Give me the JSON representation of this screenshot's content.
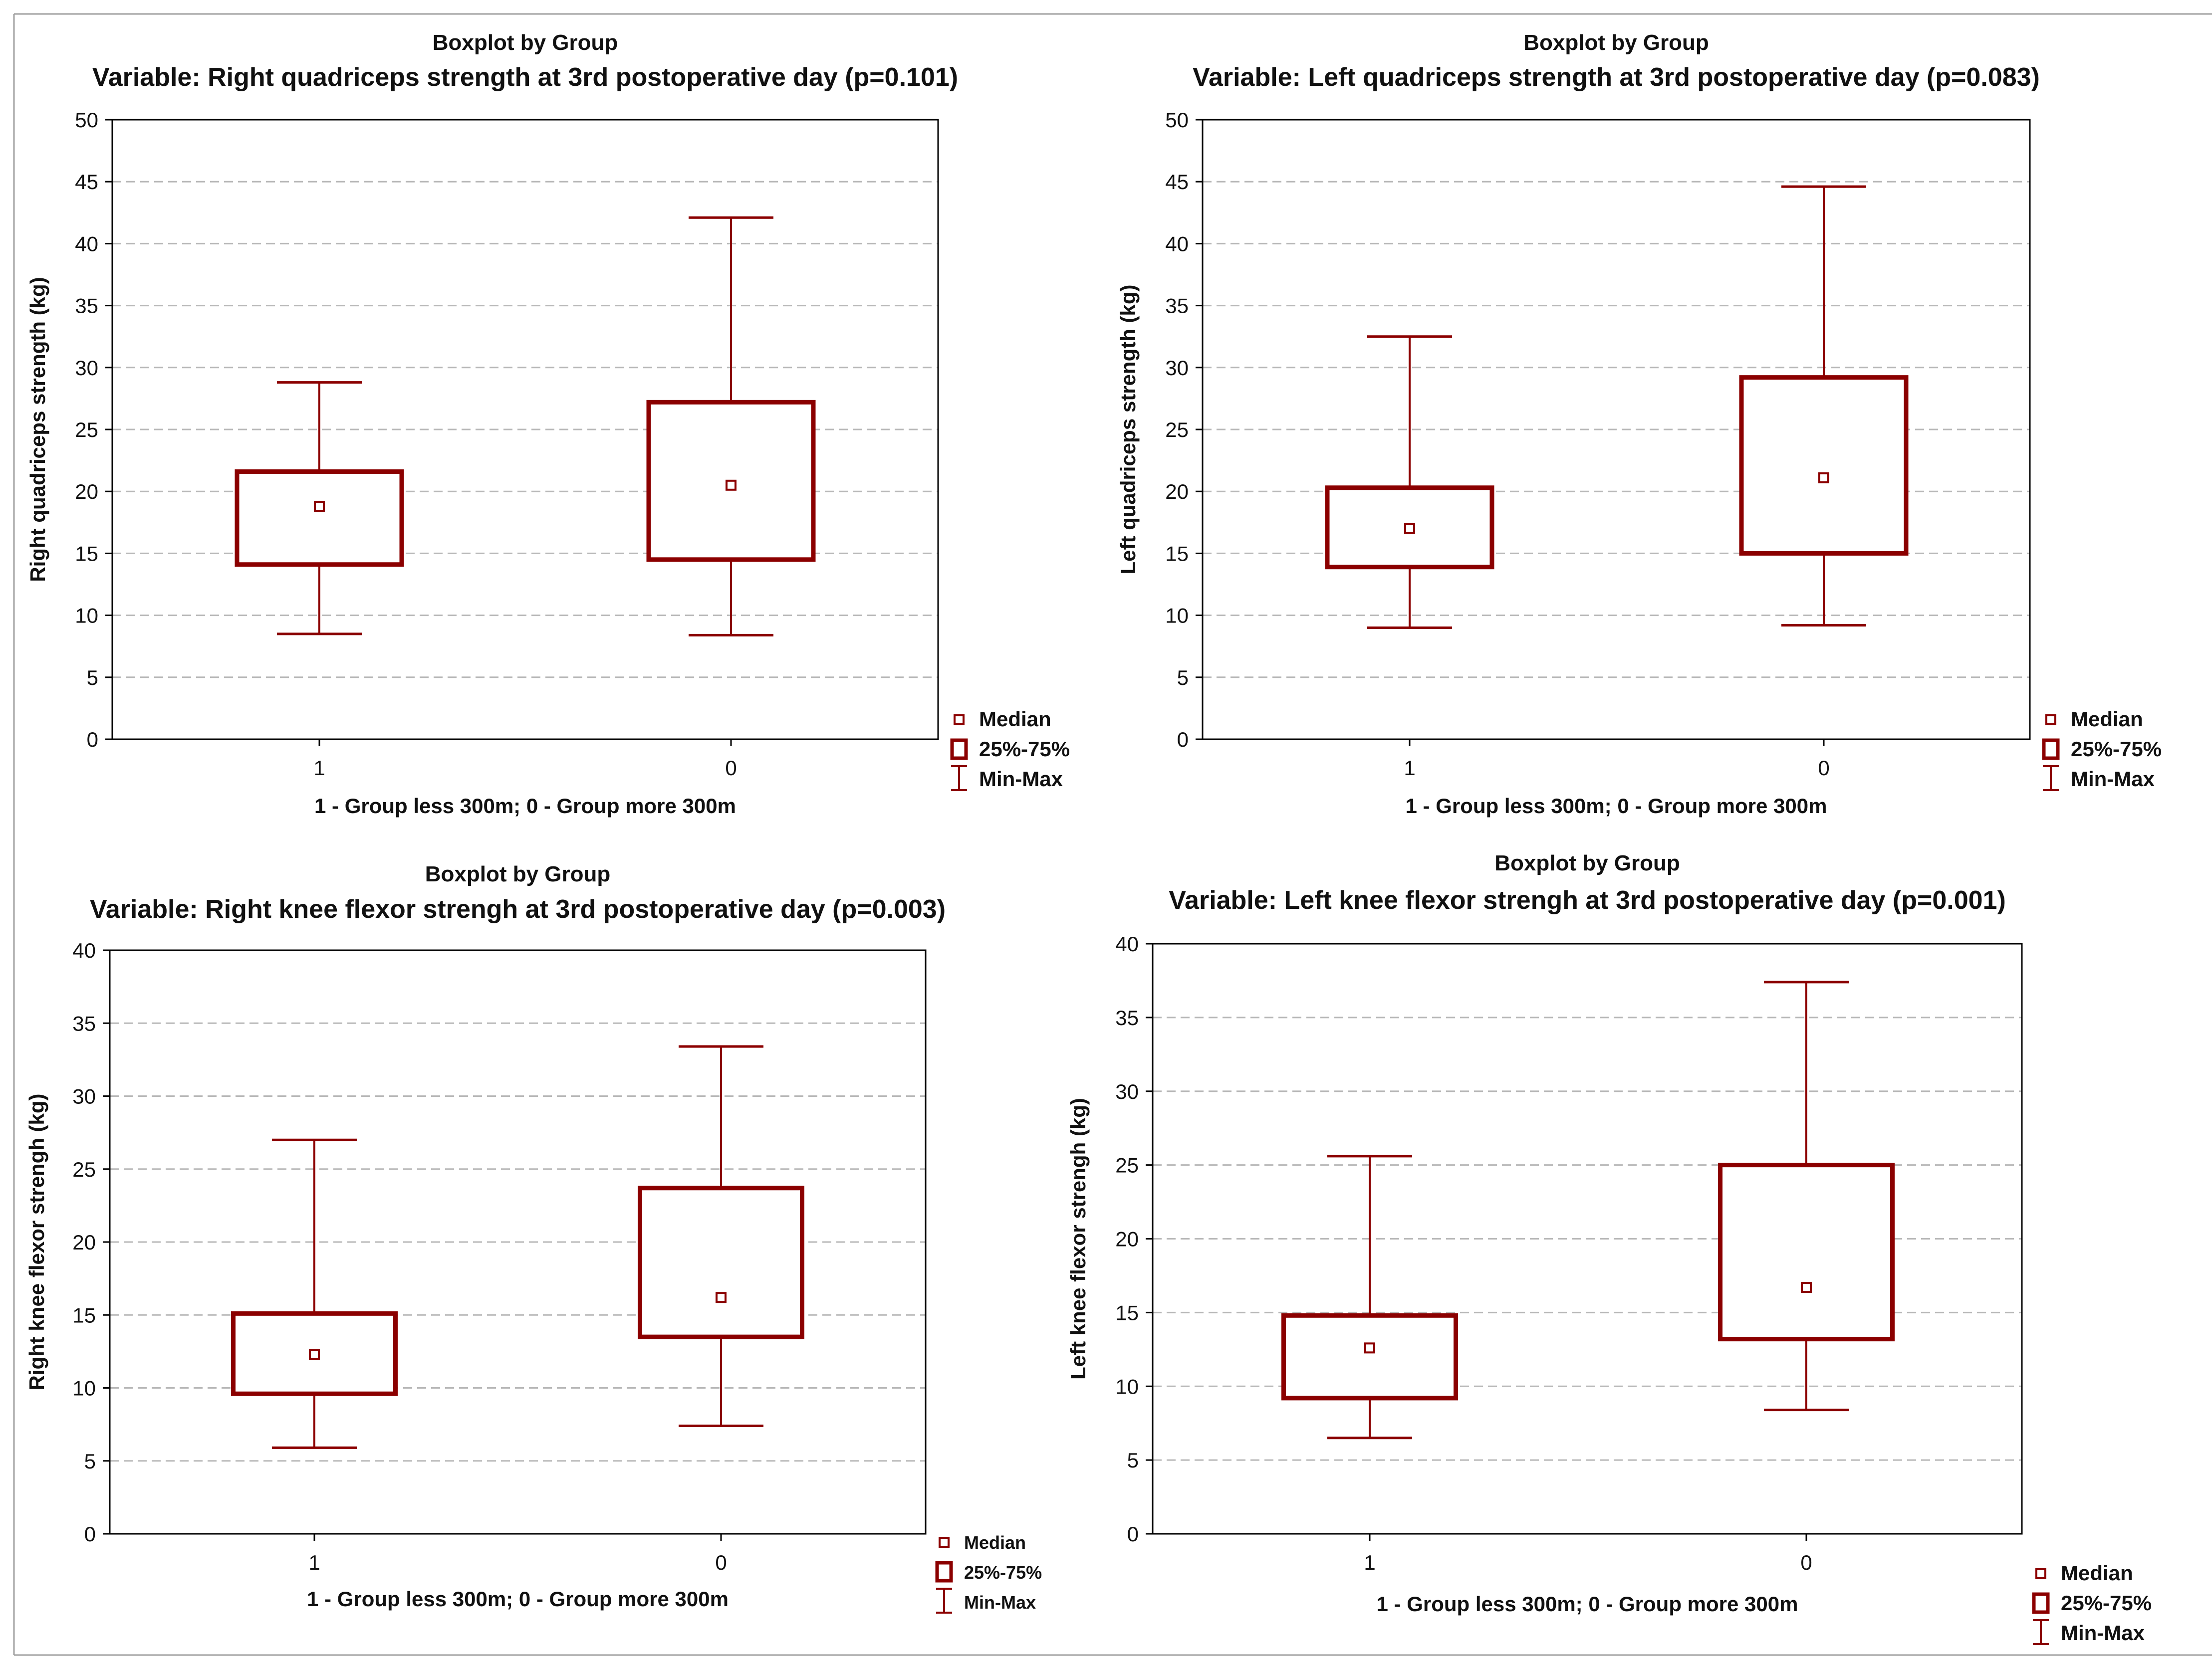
{
  "colors": {
    "box": "#8b0000",
    "grid": "#b8b8b8",
    "axis": "#000000",
    "frame": "#a0a0a0"
  },
  "icons": {
    "median": "median-square-icon",
    "iqr": "iqr-box-icon",
    "range": "min-max-whisker-icon"
  },
  "chart_data": [
    {
      "type": "boxplot",
      "title": "Boxplot by Group",
      "subtitle": "Variable: Right quadriceps strength at 3rd postoperative day (p=0.101)",
      "xlabel": "1 - Group less 300m; 0 - Group more 300m",
      "ylabel": "Right quadriceps strength (kg)",
      "categories": [
        "1",
        "0"
      ],
      "ylim": [
        0,
        50
      ],
      "yticks": [
        0,
        5,
        10,
        15,
        20,
        25,
        30,
        35,
        40,
        45,
        50
      ],
      "grid": true,
      "legend_position": "bottom-right",
      "legend": [
        "Median",
        "25%-75%",
        "Min-Max"
      ],
      "boxes": [
        {
          "group": "1",
          "min": 8.5,
          "q1": 14.1,
          "median": 18.8,
          "q3": 21.6,
          "max": 28.8
        },
        {
          "group": "0",
          "min": 8.4,
          "q1": 14.5,
          "median": 20.5,
          "q3": 27.2,
          "max": 42.1
        }
      ]
    },
    {
      "type": "boxplot",
      "title": "Boxplot by Group",
      "subtitle": "Variable: Left quadriceps strength at 3rd postoperative day (p=0.083)",
      "xlabel": "1 - Group less 300m; 0 - Group more 300m",
      "ylabel": "Left quadriceps strength (kg)",
      "categories": [
        "1",
        "0"
      ],
      "ylim": [
        0,
        50
      ],
      "yticks": [
        0,
        5,
        10,
        15,
        20,
        25,
        30,
        35,
        40,
        45,
        50
      ],
      "grid": true,
      "legend_position": "bottom-right",
      "legend": [
        "Median",
        "25%-75%",
        "Min-Max"
      ],
      "boxes": [
        {
          "group": "1",
          "min": 9.0,
          "q1": 13.9,
          "median": 17.0,
          "q3": 20.3,
          "max": 32.5
        },
        {
          "group": "0",
          "min": 9.2,
          "q1": 15.0,
          "median": 21.1,
          "q3": 29.2,
          "max": 44.6
        }
      ]
    },
    {
      "type": "boxplot",
      "title": "Boxplot by Group",
      "subtitle": "Variable: Right knee flexor strengh at 3rd postoperative day (p=0.003)",
      "xlabel": "1 - Group less 300m; 0 - Group more 300m",
      "ylabel": "Right knee flexor strengh (kg)",
      "categories": [
        "1",
        "0"
      ],
      "ylim": [
        0,
        40
      ],
      "yticks": [
        0,
        5,
        10,
        15,
        20,
        25,
        30,
        35,
        40
      ],
      "grid": true,
      "legend_position": "bottom-right",
      "legend": [
        "Median",
        "25%-75%",
        "Min-Max"
      ],
      "boxes": [
        {
          "group": "1",
          "min": 5.9,
          "q1": 9.6,
          "median": 12.3,
          "q3": 15.1,
          "max": 27.0
        },
        {
          "group": "0",
          "min": 7.4,
          "q1": 13.5,
          "median": 16.2,
          "q3": 23.7,
          "max": 33.4
        }
      ]
    },
    {
      "type": "boxplot",
      "title": "Boxplot by Group",
      "subtitle": "Variable: Left knee flexor strengh at 3rd postoperative day (p=0.001)",
      "xlabel": "1 - Group less 300m; 0 - Group more 300m",
      "ylabel": "Left knee flexor strengh (kg)",
      "categories": [
        "1",
        "0"
      ],
      "ylim": [
        0,
        40
      ],
      "yticks": [
        0,
        5,
        10,
        15,
        20,
        25,
        30,
        35,
        40
      ],
      "grid": true,
      "legend_position": "bottom-right",
      "legend": [
        "Median",
        "25%-75%",
        "Min-Max"
      ],
      "boxes": [
        {
          "group": "1",
          "min": 6.5,
          "q1": 9.2,
          "median": 12.6,
          "q3": 14.8,
          "max": 25.6
        },
        {
          "group": "0",
          "min": 8.4,
          "q1": 13.2,
          "median": 16.7,
          "q3": 25.0,
          "max": 37.4
        }
      ]
    }
  ]
}
